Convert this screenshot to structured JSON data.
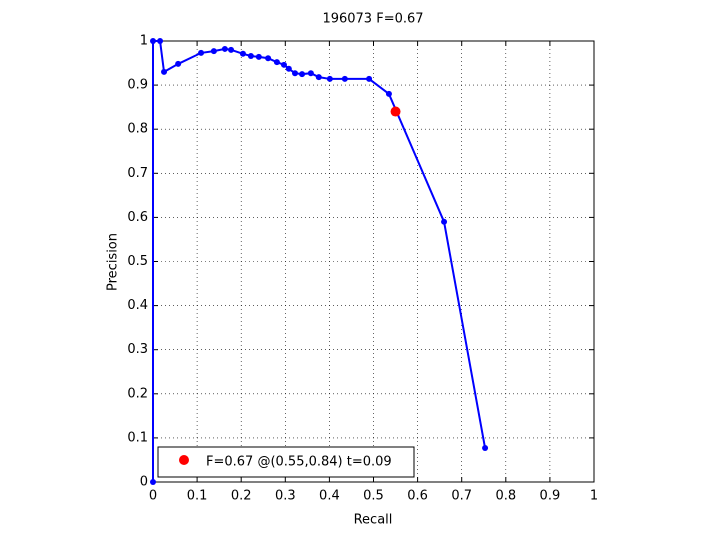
{
  "chart_data": {
    "type": "line",
    "title": "196073 F=0.67",
    "xlabel": "Recall",
    "ylabel": "Precision",
    "xlim": [
      0,
      1
    ],
    "ylim": [
      0,
      1
    ],
    "xticks": [
      0,
      0.1,
      0.2,
      0.3,
      0.4,
      0.5,
      0.6,
      0.7,
      0.8,
      0.9,
      1
    ],
    "yticks": [
      0,
      0.1,
      0.2,
      0.3,
      0.4,
      0.5,
      0.6,
      0.7,
      0.8,
      0.9,
      1
    ],
    "grid": true,
    "legend": "lower left",
    "series": [
      {
        "color": "#0000ff",
        "marker": "dot",
        "x": [
          0,
          0,
          0.016,
          0.025,
          0.057,
          0.109,
          0.138,
          0.163,
          0.177,
          0.204,
          0.222,
          0.24,
          0.261,
          0.281,
          0.297,
          0.308,
          0.322,
          0.338,
          0.358,
          0.376,
          0.401,
          0.435,
          0.49,
          0.535,
          0.66,
          0.753
        ],
        "values": [
          0,
          1,
          1,
          0.93,
          0.948,
          0.973,
          0.977,
          0.982,
          0.98,
          0.971,
          0.966,
          0.964,
          0.961,
          0.952,
          0.946,
          0.937,
          0.927,
          0.925,
          0.927,
          0.918,
          0.914,
          0.914,
          0.914,
          0.88,
          0.59,
          0.077
        ]
      },
      {
        "name": "F=0.67 @(0.55,0.84) t=0.09",
        "color": "#ff0000",
        "marker": "big-dot",
        "x": [
          0.55
        ],
        "values": [
          0.84
        ]
      }
    ]
  }
}
